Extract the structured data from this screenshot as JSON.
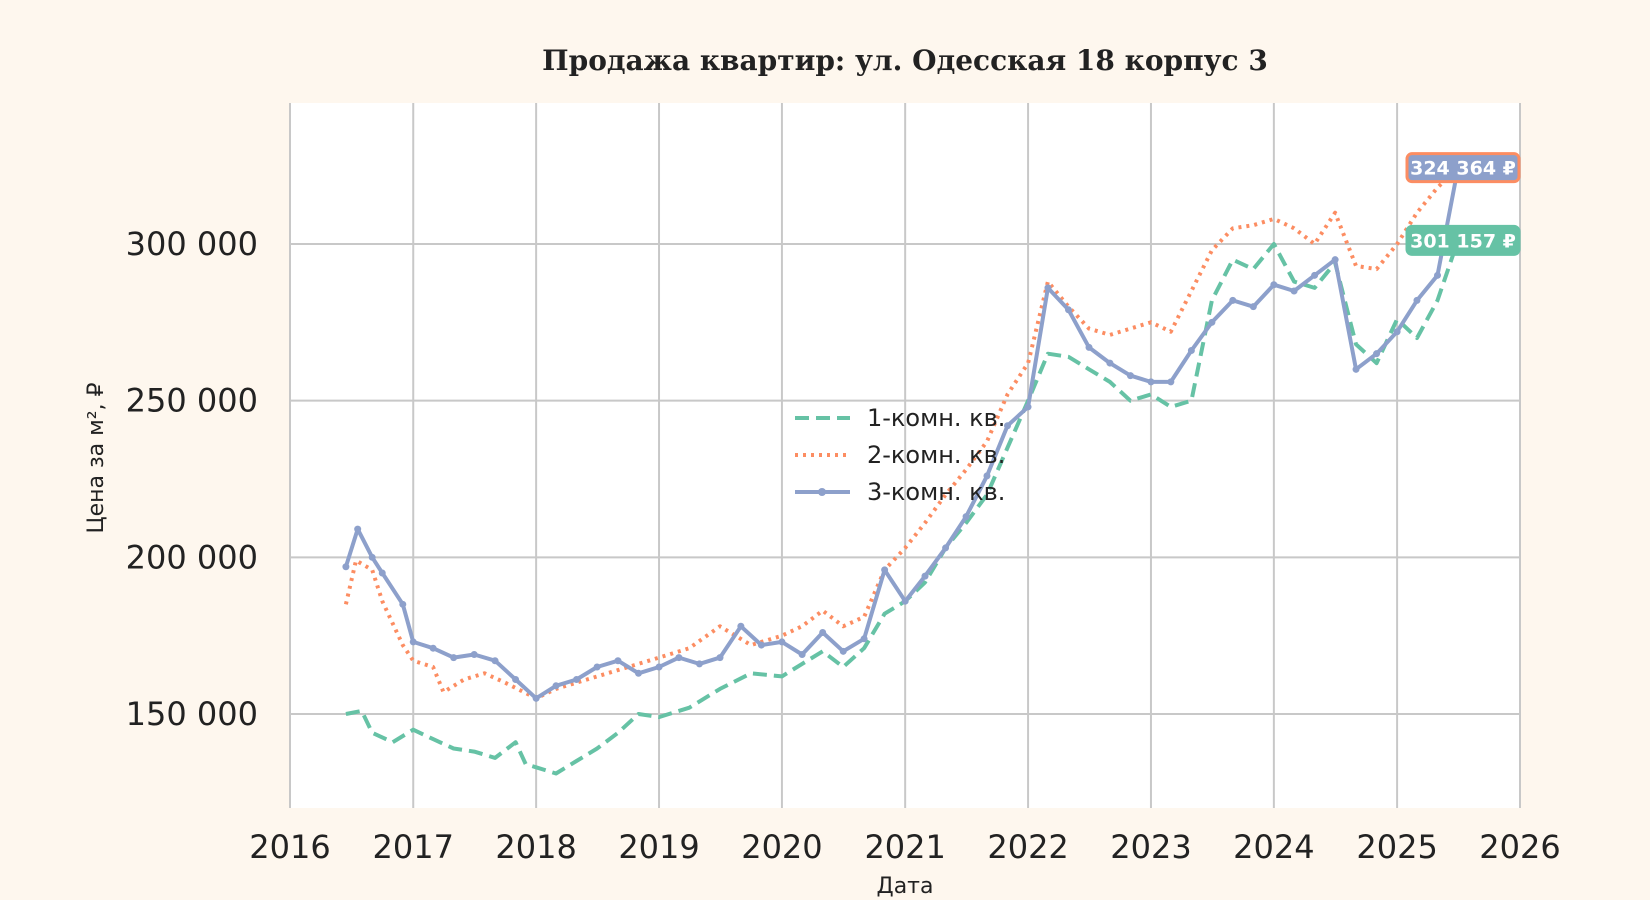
{
  "chart_data": {
    "type": "line",
    "title": "Продажа квартир: ул. Одесская 18 корпус 3",
    "xlabel": "Дата",
    "ylabel": "Цена за м², ₽",
    "xlim": [
      "2016-01-01",
      "2026-01-01"
    ],
    "ylim": [
      120000,
      345000
    ],
    "x_ticks": [
      "2016",
      "2017",
      "2018",
      "2019",
      "2020",
      "2021",
      "2022",
      "2023",
      "2024",
      "2025",
      "2026"
    ],
    "x_tick_dates": [
      "2016-01-01",
      "2017-01-01",
      "2018-01-01",
      "2019-01-01",
      "2020-01-01",
      "2021-01-01",
      "2022-01-01",
      "2023-01-01",
      "2024-01-01",
      "2025-01-01",
      "2026-01-01"
    ],
    "y_ticks": [
      150000,
      200000,
      250000,
      300000
    ],
    "y_tick_labels": [
      "150 000",
      "200 000",
      "250 000",
      "300 000"
    ],
    "grid": true,
    "legend_position": "center",
    "colors": {
      "background": "#fef7ee",
      "plot_background": "#ffffff"
    },
    "series": [
      {
        "name": "1-комн. кв.",
        "color": "#66c2a5",
        "style": "dashed",
        "points": [
          [
            "2016-06-15",
            150000
          ],
          [
            "2016-08-01",
            151000
          ],
          [
            "2016-09-01",
            144000
          ],
          [
            "2016-11-01",
            141000
          ],
          [
            "2017-01-01",
            145000
          ],
          [
            "2017-03-01",
            142000
          ],
          [
            "2017-05-01",
            139000
          ],
          [
            "2017-07-01",
            138000
          ],
          [
            "2017-09-01",
            136000
          ],
          [
            "2017-11-01",
            141000
          ],
          [
            "2017-12-01",
            134000
          ],
          [
            "2018-01-01",
            133000
          ],
          [
            "2018-03-01",
            131000
          ],
          [
            "2018-05-01",
            135000
          ],
          [
            "2018-07-01",
            139000
          ],
          [
            "2018-09-01",
            144000
          ],
          [
            "2018-11-01",
            150000
          ],
          [
            "2019-01-01",
            149000
          ],
          [
            "2019-04-01",
            152000
          ],
          [
            "2019-07-01",
            158000
          ],
          [
            "2019-10-01",
            163000
          ],
          [
            "2020-01-01",
            162000
          ],
          [
            "2020-03-01",
            166000
          ],
          [
            "2020-05-01",
            170000
          ],
          [
            "2020-07-01",
            165000
          ],
          [
            "2020-09-01",
            171000
          ],
          [
            "2020-11-01",
            182000
          ],
          [
            "2021-01-01",
            186000
          ],
          [
            "2021-03-01",
            192000
          ],
          [
            "2021-05-01",
            203000
          ],
          [
            "2021-07-01",
            211000
          ],
          [
            "2021-09-01",
            220000
          ],
          [
            "2021-11-01",
            235000
          ],
          [
            "2022-01-01",
            250000
          ],
          [
            "2022-03-01",
            265000
          ],
          [
            "2022-05-01",
            264000
          ],
          [
            "2022-07-01",
            260000
          ],
          [
            "2022-09-01",
            256000
          ],
          [
            "2022-11-01",
            250000
          ],
          [
            "2023-01-01",
            252000
          ],
          [
            "2023-03-01",
            248000
          ],
          [
            "2023-05-01",
            250000
          ],
          [
            "2023-07-01",
            282000
          ],
          [
            "2023-09-01",
            295000
          ],
          [
            "2023-11-01",
            292000
          ],
          [
            "2024-01-01",
            300000
          ],
          [
            "2024-03-01",
            288000
          ],
          [
            "2024-05-01",
            286000
          ],
          [
            "2024-07-01",
            294000
          ],
          [
            "2024-09-01",
            268000
          ],
          [
            "2024-11-01",
            262000
          ],
          [
            "2025-01-01",
            276000
          ],
          [
            "2025-03-01",
            270000
          ],
          [
            "2025-05-01",
            282000
          ],
          [
            "2025-07-01",
            301157
          ]
        ]
      },
      {
        "name": "2-комн. кв.",
        "color": "#fc8d62",
        "style": "dotted",
        "points": [
          [
            "2016-06-15",
            185000
          ],
          [
            "2016-07-15",
            199000
          ],
          [
            "2016-09-01",
            196000
          ],
          [
            "2016-10-01",
            186000
          ],
          [
            "2016-12-01",
            172000
          ],
          [
            "2017-01-01",
            167000
          ],
          [
            "2017-03-01",
            165000
          ],
          [
            "2017-04-01",
            157000
          ],
          [
            "2017-06-01",
            161000
          ],
          [
            "2017-08-01",
            163000
          ],
          [
            "2017-10-01",
            160000
          ],
          [
            "2018-01-01",
            155000
          ],
          [
            "2018-03-01",
            158000
          ],
          [
            "2018-06-01",
            161000
          ],
          [
            "2018-09-01",
            164000
          ],
          [
            "2019-01-01",
            168000
          ],
          [
            "2019-04-01",
            171000
          ],
          [
            "2019-07-01",
            178000
          ],
          [
            "2019-10-01",
            172000
          ],
          [
            "2020-01-01",
            175000
          ],
          [
            "2020-03-01",
            178000
          ],
          [
            "2020-05-01",
            183000
          ],
          [
            "2020-07-01",
            178000
          ],
          [
            "2020-09-01",
            181000
          ],
          [
            "2020-11-01",
            196000
          ],
          [
            "2021-01-01",
            203000
          ],
          [
            "2021-03-01",
            211000
          ],
          [
            "2021-05-01",
            220000
          ],
          [
            "2021-07-01",
            228000
          ],
          [
            "2021-09-01",
            237000
          ],
          [
            "2021-11-01",
            252000
          ],
          [
            "2022-01-01",
            262000
          ],
          [
            "2022-03-01",
            288000
          ],
          [
            "2022-05-01",
            280000
          ],
          [
            "2022-07-01",
            273000
          ],
          [
            "2022-09-01",
            271000
          ],
          [
            "2022-11-01",
            273000
          ],
          [
            "2023-01-01",
            275000
          ],
          [
            "2023-03-01",
            272000
          ],
          [
            "2023-05-01",
            285000
          ],
          [
            "2023-07-01",
            298000
          ],
          [
            "2023-09-01",
            305000
          ],
          [
            "2023-11-01",
            306000
          ],
          [
            "2024-01-01",
            308000
          ],
          [
            "2024-03-01",
            305000
          ],
          [
            "2024-05-01",
            300000
          ],
          [
            "2024-07-01",
            310000
          ],
          [
            "2024-09-01",
            293000
          ],
          [
            "2024-11-01",
            292000
          ],
          [
            "2025-01-01",
            300000
          ],
          [
            "2025-03-01",
            310000
          ],
          [
            "2025-05-01",
            318000
          ],
          [
            "2025-07-01",
            324364
          ]
        ]
      },
      {
        "name": "3-комн. кв.",
        "color": "#8da0cb",
        "style": "solid-marker",
        "points": [
          [
            "2016-06-15",
            197000
          ],
          [
            "2016-07-20",
            209000
          ],
          [
            "2016-09-01",
            200000
          ],
          [
            "2016-10-01",
            195000
          ],
          [
            "2016-12-01",
            185000
          ],
          [
            "2017-01-01",
            173000
          ],
          [
            "2017-03-01",
            171000
          ],
          [
            "2017-05-01",
            168000
          ],
          [
            "2017-07-01",
            169000
          ],
          [
            "2017-09-01",
            167000
          ],
          [
            "2017-11-01",
            161000
          ],
          [
            "2018-01-01",
            155000
          ],
          [
            "2018-03-01",
            159000
          ],
          [
            "2018-05-01",
            161000
          ],
          [
            "2018-07-01",
            165000
          ],
          [
            "2018-09-01",
            167000
          ],
          [
            "2018-11-01",
            163000
          ],
          [
            "2019-01-01",
            165000
          ],
          [
            "2019-03-01",
            168000
          ],
          [
            "2019-05-01",
            166000
          ],
          [
            "2019-07-01",
            168000
          ],
          [
            "2019-09-01",
            178000
          ],
          [
            "2019-11-01",
            172000
          ],
          [
            "2020-01-01",
            173000
          ],
          [
            "2020-03-01",
            169000
          ],
          [
            "2020-05-01",
            176000
          ],
          [
            "2020-07-01",
            170000
          ],
          [
            "2020-09-01",
            174000
          ],
          [
            "2020-11-01",
            196000
          ],
          [
            "2021-01-01",
            186000
          ],
          [
            "2021-03-01",
            194000
          ],
          [
            "2021-05-01",
            203000
          ],
          [
            "2021-07-01",
            213000
          ],
          [
            "2021-09-01",
            226000
          ],
          [
            "2021-11-01",
            242000
          ],
          [
            "2022-01-01",
            248000
          ],
          [
            "2022-03-01",
            286000
          ],
          [
            "2022-05-01",
            279000
          ],
          [
            "2022-07-01",
            267000
          ],
          [
            "2022-09-01",
            262000
          ],
          [
            "2022-11-01",
            258000
          ],
          [
            "2023-01-01",
            256000
          ],
          [
            "2023-03-01",
            256000
          ],
          [
            "2023-05-01",
            266000
          ],
          [
            "2023-07-01",
            275000
          ],
          [
            "2023-09-01",
            282000
          ],
          [
            "2023-11-01",
            280000
          ],
          [
            "2024-01-01",
            287000
          ],
          [
            "2024-03-01",
            285000
          ],
          [
            "2024-05-01",
            290000
          ],
          [
            "2024-07-01",
            295000
          ],
          [
            "2024-09-01",
            260000
          ],
          [
            "2024-11-01",
            265000
          ],
          [
            "2025-01-01",
            272000
          ],
          [
            "2025-03-01",
            282000
          ],
          [
            "2025-05-01",
            290000
          ],
          [
            "2025-07-01",
            324364
          ]
        ]
      }
    ],
    "annotations": [
      {
        "text": "324 364 ₽",
        "series": "3-комн. кв.",
        "value": 324364,
        "bg": "#8da0cb",
        "border": "#fc8d62"
      },
      {
        "text": "301 157 ₽",
        "series": "1-комн. кв.",
        "value": 301157,
        "bg": "#66c2a5",
        "border": "#66c2a5"
      }
    ]
  }
}
